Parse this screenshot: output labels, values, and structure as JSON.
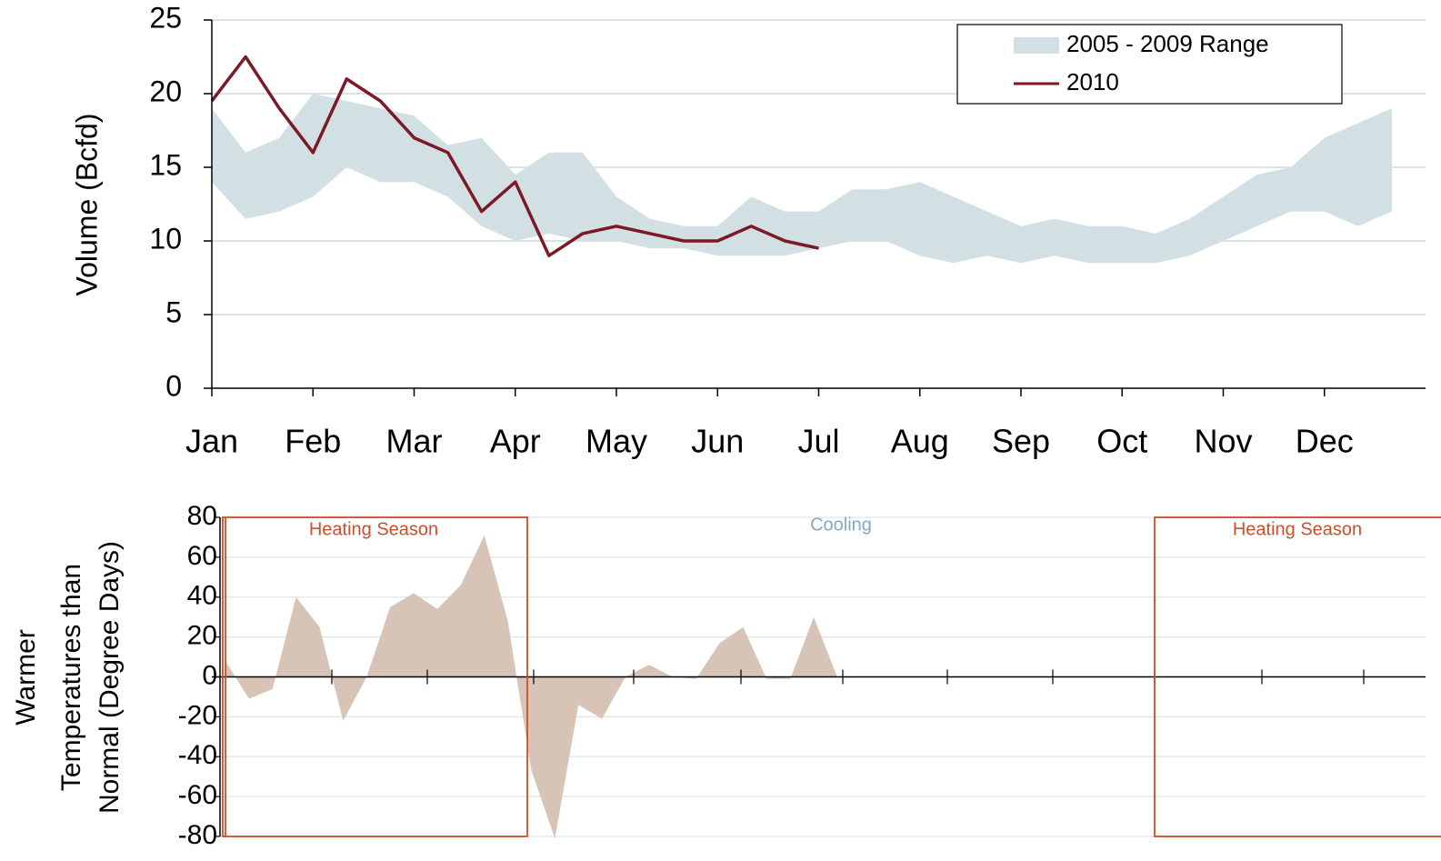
{
  "chart_data": [
    {
      "type": "range-line",
      "y_label": "Volume (Bcfd)",
      "categories": [
        "Jan",
        null,
        null,
        "Feb",
        null,
        null,
        "Mar",
        null,
        null,
        "Apr",
        null,
        null,
        "May",
        null,
        null,
        "Jun",
        null,
        null,
        "Jul",
        null,
        null,
        "Aug",
        null,
        null,
        "Sep",
        null,
        null,
        "Oct",
        null,
        null,
        "Nov",
        null,
        null,
        "Dec",
        null,
        null
      ],
      "ylim": [
        0,
        25
      ],
      "yticks": [
        0,
        5,
        10,
        15,
        20,
        25
      ],
      "grid": true,
      "legend": "top-right",
      "series": [
        {
          "name": "2005 - 2009 Range",
          "color": "#d3e0e3",
          "values": [
            19,
            16,
            17,
            20,
            19.5,
            19,
            18.5,
            16.5,
            17,
            14.5,
            16,
            16,
            13,
            11.5,
            11,
            11,
            13,
            12,
            12,
            13.5,
            13.5,
            14,
            13,
            12,
            11,
            11.5,
            11,
            11,
            10.5,
            11.5,
            13,
            14.5,
            15,
            17,
            18,
            19
          ],
          "lower": [
            14,
            11.5,
            12,
            13,
            15,
            14,
            14,
            13,
            11,
            10,
            10.5,
            10,
            10,
            9.5,
            9.5,
            9,
            9,
            9,
            9.5,
            10,
            10,
            9,
            8.5,
            9,
            8.5,
            9,
            8.5,
            8.5,
            8.5,
            9,
            10,
            11,
            12,
            12,
            11,
            12
          ]
        },
        {
          "name": "2010",
          "color": "#7b1a26",
          "values": [
            19.5,
            22.5,
            19,
            16,
            21,
            19.5,
            17,
            16,
            12,
            14,
            9,
            10.5,
            11,
            10.5,
            10,
            10,
            11,
            10,
            9.5,
            null,
            null,
            null,
            null,
            null,
            null,
            null,
            null,
            null,
            null,
            null,
            null,
            null,
            null,
            null,
            null,
            null
          ]
        }
      ]
    },
    {
      "type": "area",
      "y_label": [
        "Warmer",
        "Temperatures than",
        "Normal (Degree Days)"
      ],
      "categories": [
        null,
        null,
        null,
        null,
        null,
        null,
        null,
        null,
        null,
        null,
        null,
        null,
        null,
        null,
        null,
        null,
        null,
        null,
        null,
        null,
        null,
        null,
        null,
        null,
        null,
        null,
        null,
        null,
        null,
        null,
        null,
        null,
        null,
        null,
        null,
        null,
        null,
        null,
        null,
        null,
        null,
        null,
        null,
        null,
        null,
        null,
        null,
        null,
        null,
        null,
        null,
        null
      ],
      "values": [
        8,
        -11,
        -6,
        40,
        25,
        -22,
        0,
        35,
        42,
        34,
        46,
        71,
        28,
        -47,
        -81,
        -14,
        -21,
        0,
        6,
        0,
        -1,
        17,
        25,
        -1,
        -1,
        30,
        0,
        null,
        null,
        null,
        null,
        null,
        null,
        null,
        null,
        null,
        null,
        null,
        null,
        null,
        null,
        null,
        null,
        null,
        null,
        null,
        null,
        null,
        null,
        null,
        null,
        null
      ],
      "color": "#d8c3b7",
      "ylim": [
        -80,
        80
      ],
      "yticks": [
        -80,
        -60,
        -40,
        -20,
        0,
        20,
        40,
        60,
        80
      ],
      "grid": true,
      "annotations": [
        "Heating Season",
        "Cooling",
        "Heating Season"
      ]
    }
  ]
}
